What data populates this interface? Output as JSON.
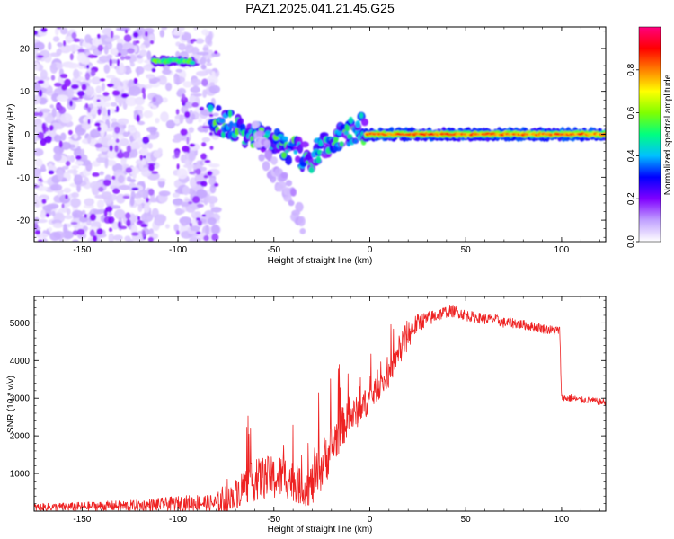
{
  "title": "PAZ1.2025.041.21.45.G25",
  "chart_data": [
    {
      "type": "heatmap",
      "xlabel": "Height of straight line (km)",
      "ylabel": "Frequency (Hz)",
      "xlim": [
        -175,
        123
      ],
      "ylim": [
        -25,
        25
      ],
      "xticks": [
        -150,
        -100,
        -50,
        0,
        50,
        100
      ],
      "yticks": [
        -20,
        -10,
        0,
        10,
        20
      ],
      "colorbar": {
        "label": "Normalized spectral amplitude",
        "range": [
          0,
          1
        ],
        "ticks": [
          "0.0",
          "0.2",
          "0.4",
          "0.6",
          "0.8"
        ],
        "colormap": [
          "#ffffff",
          "#c0a0ff",
          "#8000ff",
          "#0000ff",
          "#00c0ff",
          "#00ff80",
          "#80ff00",
          "#ffff00",
          "#ff8000",
          "#ff0000",
          "#ff0080"
        ]
      },
      "features": [
        {
          "region": "noise",
          "x_range": [
            -175,
            -80
          ],
          "y_range": [
            -25,
            25
          ],
          "amplitude": 0.1
        },
        {
          "region": "tone",
          "x_range": [
            -113,
            -92
          ],
          "frequency": 17,
          "amplitude": 0.45
        },
        {
          "region": "descending_track",
          "x_range": [
            -83,
            -28
          ],
          "frequency_range": [
            4,
            -6
          ],
          "amplitude": 0.45
        },
        {
          "region": "descending_track",
          "x_range": [
            -60,
            -35
          ],
          "frequency_range": [
            0,
            -20
          ],
          "amplitude": 0.15
        },
        {
          "region": "converging_track",
          "x_range": [
            -28,
            -2
          ],
          "frequency_range": [
            -4,
            2
          ],
          "amplitude": 0.45
        },
        {
          "region": "stable_line",
          "x_range": [
            -2,
            123
          ],
          "frequency": 0,
          "amplitude": 0.85
        }
      ]
    },
    {
      "type": "line",
      "xlabel": "Height of straight line (km)",
      "ylabel": "SNR (10 * v/v)",
      "xlim": [
        -175,
        123
      ],
      "ylim": [
        0,
        5700
      ],
      "xticks": [
        -150,
        -100,
        -50,
        0,
        50,
        100
      ],
      "yticks": [
        1000,
        2000,
        3000,
        4000,
        5000
      ],
      "series": [
        {
          "color": "#ee2222",
          "x": [
            -175,
            -150,
            -120,
            -100,
            -90,
            -80,
            -75,
            -70,
            -65,
            -60,
            -55,
            -50,
            -45,
            -40,
            -35,
            -30,
            -25,
            -20,
            -15,
            -10,
            -5,
            0,
            5,
            10,
            15,
            20,
            25,
            30,
            35,
            40,
            45,
            50,
            55,
            60,
            65,
            70,
            75,
            80,
            85,
            90,
            95,
            99,
            100,
            105,
            110,
            115,
            120,
            123
          ],
          "y": [
            100,
            120,
            150,
            200,
            230,
            200,
            300,
            450,
            700,
            800,
            900,
            850,
            950,
            800,
            600,
            700,
            1200,
            1700,
            2200,
            2500,
            2700,
            3000,
            3300,
            3600,
            4200,
            4700,
            5000,
            5100,
            5200,
            5300,
            5300,
            5200,
            5150,
            5100,
            5100,
            5000,
            5000,
            4950,
            4900,
            4850,
            4800,
            4800,
            3000,
            3000,
            2950,
            2950,
            2900,
            2900
          ],
          "band": [
            100,
            120,
            150,
            200,
            220,
            250,
            500,
            900,
            1100,
            1200,
            1300,
            1300,
            1300,
            1200,
            1000,
            1300,
            1500,
            1400,
            1200,
            1000,
            900,
            800,
            700,
            700,
            600,
            400,
            250,
            200,
            180,
            160,
            150,
            150,
            140,
            140,
            140,
            140,
            140,
            130,
            130,
            130,
            130,
            130,
            100,
            100,
            90,
            90,
            90,
            90
          ]
        }
      ]
    }
  ]
}
